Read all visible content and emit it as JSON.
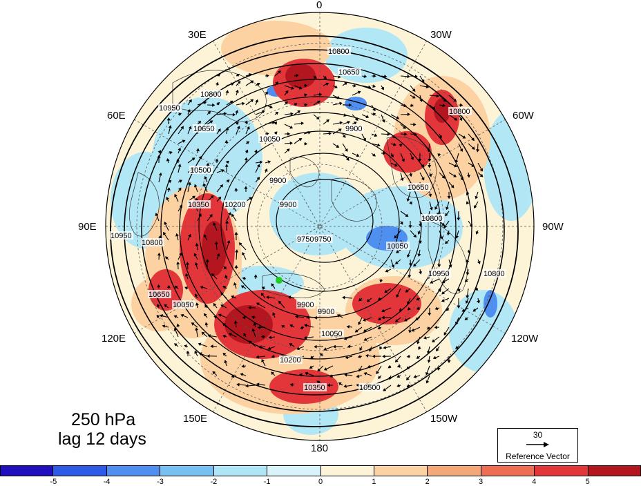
{
  "panel": {
    "level": "250 hPa",
    "lag": "lag 12 days"
  },
  "longitude_labels": {
    "top": "0",
    "upper_left": "30E",
    "upper_right": "30W",
    "left_upper": "60E",
    "right_upper": "60W",
    "left": "90E",
    "right": "90W",
    "left_lower": "120E",
    "right_lower": "120W",
    "lower_left": "150E",
    "lower_right": "150W",
    "bottom": "180"
  },
  "contour_labels": [
    "10800",
    "10650",
    "10950",
    "10800",
    "10650",
    "10500",
    "10350",
    "10200",
    "10050",
    "9900",
    "9900",
    "9750",
    "9900",
    "10050",
    "10200",
    "10350",
    "10500",
    "10650",
    "10800",
    "10950",
    "9900",
    "10050",
    "10800",
    "10800",
    "10950",
    "10800",
    "10650",
    "10050",
    "9900",
    "9750"
  ],
  "reference_vector": {
    "value": "30",
    "caption": "Reference Vector"
  },
  "colorbar": {
    "colors": [
      "#1f0fbf",
      "#2d5be8",
      "#4f8ff0",
      "#76c0f3",
      "#aee6f7",
      "#d9f3fb",
      "#fdf4d8",
      "#fcd2a2",
      "#f5a877",
      "#ee6e53",
      "#e3363b",
      "#b3161f"
    ],
    "ticks": [
      "-5",
      "-4",
      "-3",
      "-2",
      "-1",
      "0",
      "1",
      "2",
      "3",
      "4",
      "5"
    ]
  },
  "marker_color": "#22cc22"
}
